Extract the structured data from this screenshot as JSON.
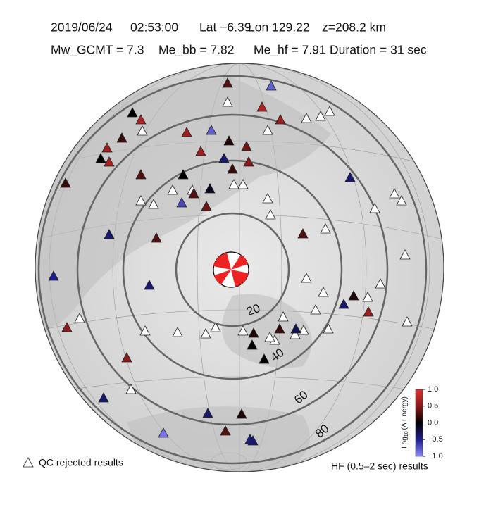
{
  "header": {
    "line1": [
      "2019/06/24",
      "02:53:00",
      "Lat −6.39",
      "Lon 129.22",
      "z=208.2 km"
    ],
    "line2": [
      "Mw_GCMT = 7.3",
      "Me_bb = 7.82",
      "Me_hf = 7.91",
      "Duration = 31 sec"
    ]
  },
  "distance_labels": [
    "20",
    "40",
    "60",
    "80"
  ],
  "colorbar": {
    "range": [
      -1,
      1
    ],
    "ticks": [
      {
        "value": 1,
        "label": "1.0"
      },
      0.5,
      {
        "value": 0,
        "label": "0.0"
      },
      {
        "value": -0.5,
        "label": "−0.5"
      },
      {
        "value": -1,
        "label": "−1.0"
      }
    ],
    "label": {
      "prefix": "Log",
      "subscript": "10",
      "suffix": "(Δ Energy)"
    }
  },
  "legend": {
    "rejected": "QC rejected results",
    "results": "HF (0.5–2 sec) results"
  },
  "stations": {
    "values": [
      0.3,
      -0.8,
      0.7,
      0.0,
      0.7,
      0.6,
      0.6,
      -0.8,
      0.2,
      0.6,
      0.6,
      0.1,
      0.4,
      0.0,
      0.7,
      -0.4,
      0.5,
      0.2,
      0.3,
      0.0,
      0.2,
      -0.1,
      0.3,
      -0.4,
      -0.7,
      0.4,
      0.3,
      -0.4,
      0.3,
      -0.5,
      -0.4,
      -0.4,
      0.1,
      0.6,
      0.5,
      -0.3,
      0.2,
      0.1,
      0.0,
      0.0,
      0.5,
      -0.4,
      -0.4,
      0.1,
      0.3,
      -0.9,
      -0.5,
      -0.4
    ]
  }
}
